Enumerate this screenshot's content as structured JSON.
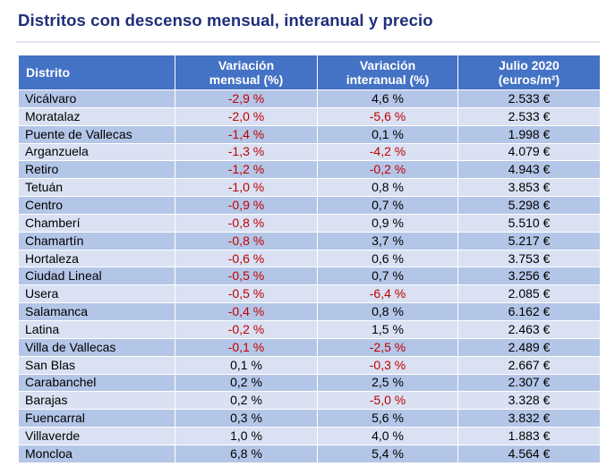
{
  "title": "Distritos con descenso mensual, interanual y precio",
  "headers": {
    "district": "Distrito",
    "monthly_l1": "Variación",
    "monthly_l2": "mensual (%)",
    "annual_l1": "Variación",
    "annual_l2": "interanual (%)",
    "price_l1": "Julio 2020",
    "price_l2": "(euros/m²)"
  },
  "colors": {
    "header_bg": "#4472c4",
    "row_dark": "#b4c6e7",
    "row_light": "#d9e1f2",
    "negative_text": "#c00000",
    "title": "#1f2f7a"
  },
  "rows": [
    {
      "district": "Vicálvaro",
      "monthly": "-2,9 %",
      "annual": "4,6 %",
      "price": "2.533 €"
    },
    {
      "district": "Moratalaz",
      "monthly": "-2,0 %",
      "annual": "-5,6 %",
      "price": "2.533 €"
    },
    {
      "district": "Puente de Vallecas",
      "monthly": "-1,4 %",
      "annual": "0,1 %",
      "price": "1.998 €"
    },
    {
      "district": "Arganzuela",
      "monthly": "-1,3 %",
      "annual": "-4,2 %",
      "price": "4.079 €"
    },
    {
      "district": "Retiro",
      "monthly": "-1,2 %",
      "annual": "-0,2 %",
      "price": "4.943 €"
    },
    {
      "district": "Tetuán",
      "monthly": "-1,0 %",
      "annual": "0,8 %",
      "price": "3.853 €"
    },
    {
      "district": "Centro",
      "monthly": "-0,9 %",
      "annual": "0,7 %",
      "price": "5.298 €"
    },
    {
      "district": "Chamberí",
      "monthly": "-0,8 %",
      "annual": "0,9 %",
      "price": "5.510 €"
    },
    {
      "district": "Chamartín",
      "monthly": "-0,8 %",
      "annual": "3,7 %",
      "price": "5.217 €"
    },
    {
      "district": "Hortaleza",
      "monthly": "-0,6 %",
      "annual": "0,6 %",
      "price": "3.753 €"
    },
    {
      "district": "Ciudad Lineal",
      "monthly": "-0,5 %",
      "annual": "0,7 %",
      "price": "3.256 €"
    },
    {
      "district": "Usera",
      "monthly": "-0,5 %",
      "annual": "-6,4 %",
      "price": "2.085 €"
    },
    {
      "district": "Salamanca",
      "monthly": "-0,4 %",
      "annual": "0,8 %",
      "price": "6.162 €"
    },
    {
      "district": "Latina",
      "monthly": "-0,2 %",
      "annual": "1,5 %",
      "price": "2.463 €"
    },
    {
      "district": "Villa de Vallecas",
      "monthly": "-0,1 %",
      "annual": "-2,5 %",
      "price": "2.489 €"
    },
    {
      "district": "San Blas",
      "monthly": "0,1 %",
      "annual": "-0,3 %",
      "price": "2.667 €"
    },
    {
      "district": "Carabanchel",
      "monthly": "0,2 %",
      "annual": "2,5 %",
      "price": "2.307 €"
    },
    {
      "district": "Barajas",
      "monthly": "0,2 %",
      "annual": "-5,0 %",
      "price": "3.328 €"
    },
    {
      "district": "Fuencarral",
      "monthly": "0,3 %",
      "annual": "5,6 %",
      "price": "3.832 €"
    },
    {
      "district": "Villaverde",
      "monthly": "1,0 %",
      "annual": "4,0 %",
      "price": "1.883 €"
    },
    {
      "district": "Moncloa",
      "monthly": "6,8 %",
      "annual": "5,4 %",
      "price": "4.564 €"
    }
  ]
}
